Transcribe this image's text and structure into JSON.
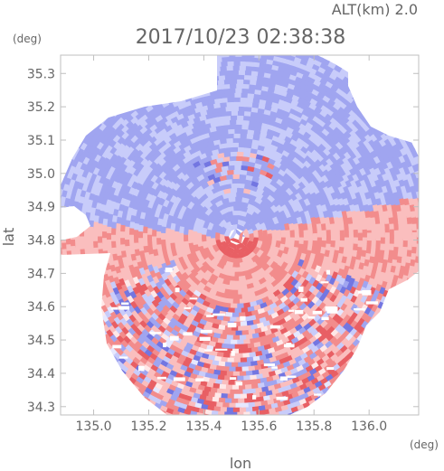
{
  "header": {
    "altitude_text": "ALT(km) 2.0",
    "timestamp": "2017/10/23 02:38:38"
  },
  "colors": {
    "positive": "#f06a6a",
    "negative": "#6a6ae8",
    "neutral": "#ffffff",
    "frame": "#bfbfbf"
  },
  "chart_data": {
    "type": "heatmap",
    "title": "2017/10/23 02:38:38",
    "subtitle": "ALT(km) 2.0",
    "xlabel": "lon",
    "ylabel": "lat",
    "x_unit": "(deg)",
    "y_unit": "(deg)",
    "xlim": [
      134.88,
      136.18
    ],
    "ylim": [
      34.275,
      35.355
    ],
    "x_ticks": [
      135.0,
      135.2,
      135.4,
      135.6,
      135.8,
      136.0
    ],
    "x_tick_labels": [
      "135.0",
      "135.2",
      "135.4",
      "135.6",
      "135.8",
      "136.0"
    ],
    "y_ticks": [
      34.3,
      34.4,
      34.5,
      34.6,
      34.7,
      34.8,
      34.9,
      35.0,
      35.1,
      35.2,
      35.3
    ],
    "y_tick_labels": [
      "34.3",
      "34.4",
      "34.5",
      "34.6",
      "34.7",
      "34.8",
      "34.9",
      "35.0",
      "35.1",
      "35.2",
      "35.3"
    ],
    "grid": false,
    "radar_center": [
      135.52,
      34.81
    ],
    "color_scale": "diverging blue-white-red (sign of value)",
    "regions": [
      {
        "name": "north sector",
        "value_sign": "negative",
        "lon": [
          135.05,
          135.95
        ],
        "lat": [
          34.86,
          35.32
        ]
      },
      {
        "name": "west band near radar",
        "value_sign": "positive",
        "lon": [
          134.88,
          135.5
        ],
        "lat": [
          34.78,
          34.86
        ]
      },
      {
        "name": "east band near radar",
        "value_sign": "positive",
        "lon": [
          135.5,
          136.16
        ],
        "lat": [
          34.7,
          34.82
        ]
      },
      {
        "name": "south sector",
        "value_sign": "mixed, mostly positive",
        "lon": [
          135.05,
          135.95
        ],
        "lat": [
          34.3,
          34.72
        ]
      }
    ]
  }
}
